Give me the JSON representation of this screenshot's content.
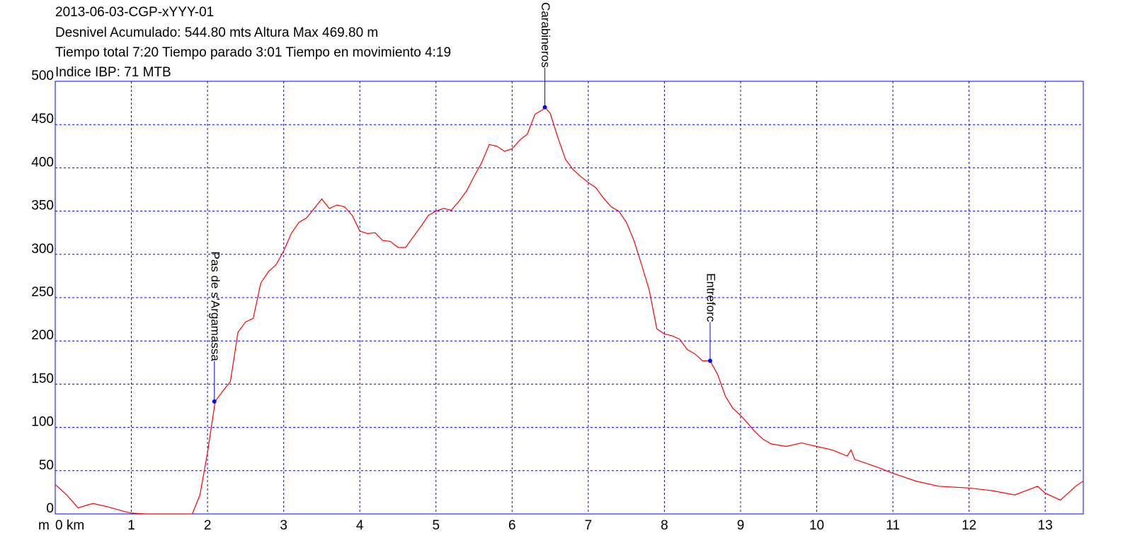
{
  "chart_data": {
    "type": "line",
    "title_lines": [
      "2013-06-03-CGP-xYYY-01",
      "Desnivel Acumulado: 544.80 mts  Altura Max 469.80 m",
      "Tiempo total 7:20 Tiempo parado 3:01 Tiempo en movimiento 4:19",
      "Indice IBP: 71 MTB"
    ],
    "y_label": "m",
    "color": "#ff0000",
    "grid": true,
    "x": [
      0,
      0.15,
      0.3,
      0.45,
      0.5,
      0.7,
      0.9,
      1.0,
      1.2,
      1.5,
      1.8,
      1.9,
      2.0,
      2.1,
      2.2,
      2.3,
      2.4,
      2.5,
      2.6,
      2.7,
      2.8,
      2.9,
      3.0,
      3.1,
      3.2,
      3.3,
      3.4,
      3.5,
      3.6,
      3.7,
      3.8,
      3.9,
      4.0,
      4.1,
      4.2,
      4.3,
      4.4,
      4.5,
      4.6,
      4.7,
      4.8,
      4.9,
      5.0,
      5.1,
      5.2,
      5.3,
      5.4,
      5.5,
      5.6,
      5.7,
      5.8,
      5.9,
      6.0,
      6.1,
      6.2,
      6.3,
      6.4,
      6.43,
      6.5,
      6.6,
      6.7,
      6.8,
      6.9,
      7.0,
      7.1,
      7.2,
      7.3,
      7.4,
      7.5,
      7.6,
      7.7,
      7.8,
      7.9,
      8.0,
      8.1,
      8.2,
      8.3,
      8.4,
      8.5,
      8.6,
      8.7,
      8.8,
      8.9,
      9.0,
      9.1,
      9.2,
      9.3,
      9.4,
      9.6,
      9.8,
      10.0,
      10.2,
      10.4,
      10.45,
      10.5,
      10.8,
      11.0,
      11.3,
      11.6,
      12.0,
      12.3,
      12.6,
      12.9,
      13.0,
      13.2,
      13.4,
      13.5
    ],
    "values": [
      34,
      22,
      7,
      11,
      12,
      8,
      3,
      1,
      0,
      0,
      0,
      22,
      71,
      130,
      142,
      153,
      210,
      222,
      226,
      267,
      280,
      288,
      304,
      324,
      337,
      342,
      353,
      364,
      353,
      357,
      355,
      345,
      327,
      324,
      325,
      316,
      315,
      308,
      308,
      320,
      332,
      345,
      350,
      353,
      351,
      361,
      373,
      390,
      406,
      427,
      425,
      419,
      422,
      432,
      439,
      462,
      467,
      470,
      463,
      435,
      410,
      398,
      390,
      383,
      377,
      365,
      355,
      350,
      337,
      316,
      288,
      259,
      214,
      208,
      206,
      202,
      190,
      185,
      177,
      177,
      161,
      136,
      122,
      114,
      104,
      94,
      86,
      81,
      78,
      82,
      78,
      74,
      67,
      74,
      63,
      54,
      47,
      38,
      32,
      30,
      27,
      22,
      32,
      24,
      16,
      32,
      38
    ],
    "xlim": [
      0,
      13.5
    ],
    "ylim": [
      0,
      500
    ],
    "xticks": [
      {
        "value": 0,
        "label": "0 km"
      },
      1,
      2,
      3,
      4,
      5,
      6,
      7,
      8,
      9,
      10,
      11,
      12,
      13
    ],
    "yticks": [
      0,
      50,
      100,
      150,
      200,
      250,
      300,
      350,
      400,
      450,
      500
    ],
    "annotations": [
      {
        "text": "Pas de s'Argamassa",
        "x": 2.09,
        "y": 130
      },
      {
        "text": "Cuartel de Carabineros",
        "x": 6.43,
        "y": 470
      },
      {
        "text": "Entreforc",
        "x": 8.6,
        "y": 177
      }
    ]
  }
}
